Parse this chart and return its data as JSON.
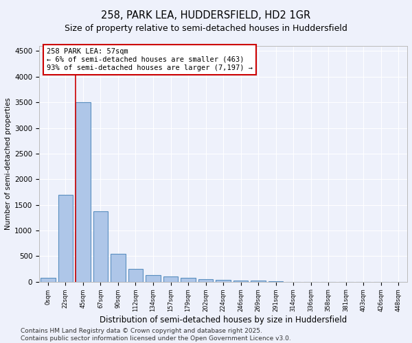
{
  "title": "258, PARK LEA, HUDDERSFIELD, HD2 1GR",
  "subtitle": "Size of property relative to semi-detached houses in Huddersfield",
  "xlabel": "Distribution of semi-detached houses by size in Huddersfield",
  "ylabel": "Number of semi-detached properties",
  "footer": "Contains HM Land Registry data © Crown copyright and database right 2025.\nContains public sector information licensed under the Open Government Licence v3.0.",
  "bar_labels": [
    "0sqm",
    "22sqm",
    "45sqm",
    "67sqm",
    "90sqm",
    "112sqm",
    "134sqm",
    "157sqm",
    "179sqm",
    "202sqm",
    "224sqm",
    "246sqm",
    "269sqm",
    "291sqm",
    "314sqm",
    "336sqm",
    "358sqm",
    "381sqm",
    "403sqm",
    "426sqm",
    "448sqm"
  ],
  "bar_values": [
    75,
    1700,
    3500,
    1380,
    540,
    255,
    135,
    110,
    80,
    50,
    35,
    30,
    22,
    8,
    2,
    1,
    0,
    0,
    0,
    0,
    0
  ],
  "bar_color": "#aec6e8",
  "bar_edge_color": "#5a8fc0",
  "ylim": [
    0,
    4600
  ],
  "yticks": [
    0,
    500,
    1000,
    1500,
    2000,
    2500,
    3000,
    3500,
    4000,
    4500
  ],
  "vline_color": "#cc0000",
  "vline_bar_index": 2,
  "annotation_title": "258 PARK LEA: 57sqm",
  "annotation_line1": "← 6% of semi-detached houses are smaller (463)",
  "annotation_line2": "93% of semi-detached houses are larger (7,197) →",
  "annotation_box_color": "#ffffff",
  "annotation_box_edge": "#cc0000",
  "bg_color": "#eef1fb",
  "grid_color": "#ffffff",
  "title_fontsize": 10.5,
  "subtitle_fontsize": 9,
  "annotation_fontsize": 7.5,
  "footer_fontsize": 6.5
}
